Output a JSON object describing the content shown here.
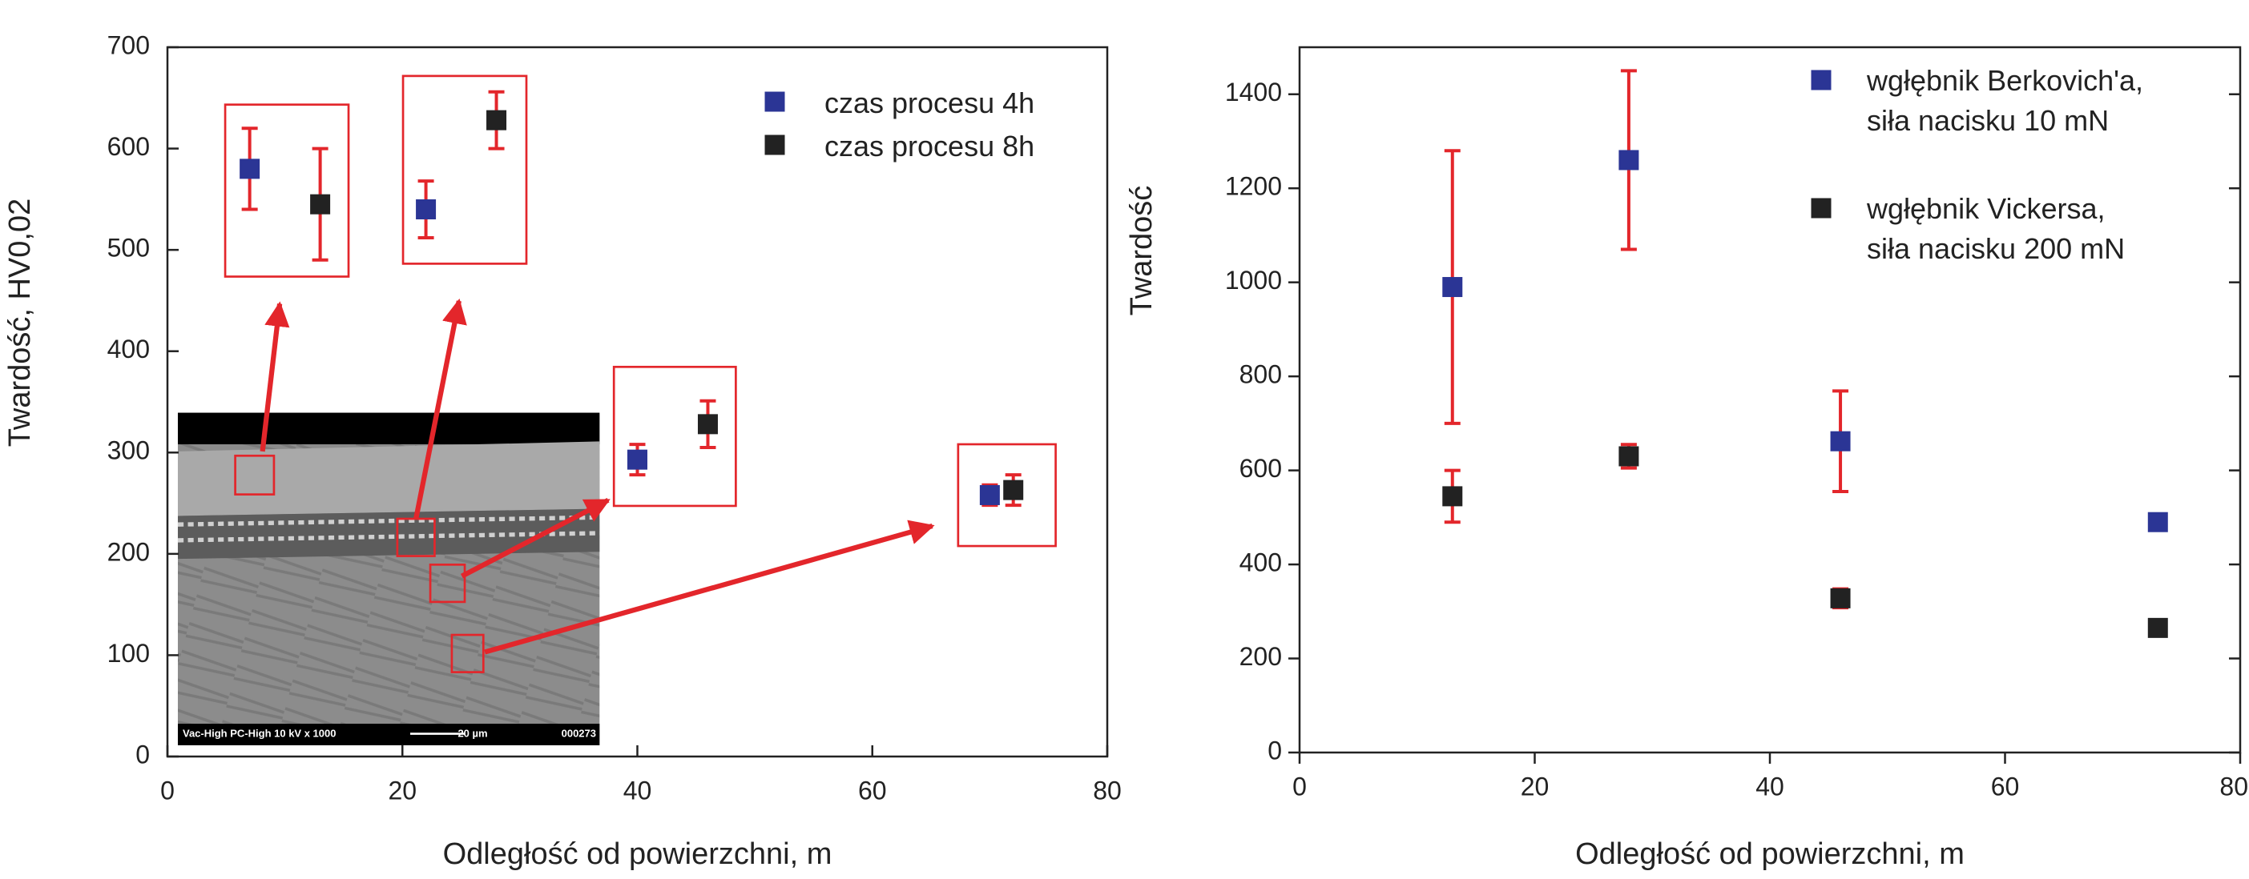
{
  "chart_data": [
    {
      "type": "scatter",
      "x_label": "Odległość od powierzchni,   m",
      "y_label": "Twardość,  HV0,02",
      "xlim": [
        0,
        80
      ],
      "ylim": [
        0,
        700
      ],
      "xticks": [
        0,
        20,
        40,
        60,
        80
      ],
      "yticks": [
        0,
        100,
        200,
        300,
        400,
        500,
        600,
        700
      ],
      "error_color": "#e3262b",
      "legend": "upper right",
      "series": [
        {
          "name": "czas procesu 4h",
          "color": "#2b3595",
          "x": [
            7,
            22,
            40,
            70
          ],
          "values": [
            580,
            540,
            293,
            258
          ],
          "errors": [
            40,
            28,
            15,
            10
          ]
        },
        {
          "name": "czas procesu 8h",
          "color": "#222222",
          "x": [
            13,
            28,
            46,
            72
          ],
          "values": [
            545,
            628,
            328,
            263
          ],
          "errors": [
            55,
            28,
            23,
            15
          ]
        }
      ],
      "inset_labels": [
        "Vac-High   PC-High  10 kV   x 1000",
        "20 µm",
        "000273"
      ]
    },
    {
      "type": "scatter",
      "x_label": "Odległość od powierzchni,   m",
      "y_label": "Twardość",
      "xlim": [
        0,
        80
      ],
      "ylim": [
        0,
        1500
      ],
      "xticks": [
        0,
        20,
        40,
        60,
        80
      ],
      "yticks": [
        0,
        200,
        400,
        600,
        800,
        1000,
        1200,
        1400
      ],
      "error_color": "#e3262b",
      "legend": "upper right",
      "series": [
        {
          "name": "wgłębnik Berkovich'a,\n siła nacisku 10 mN",
          "color": "#2b3595",
          "x": [
            13,
            28,
            46,
            73
          ],
          "values": [
            990,
            1260,
            662,
            490
          ],
          "errors": [
            290,
            190,
            107,
            15
          ]
        },
        {
          "name": "wgłębnik Vickersa,\n siła nacisku 200 mN",
          "color": "#222222",
          "x": [
            13,
            28,
            46,
            73
          ],
          "values": [
            545,
            630,
            328,
            265
          ],
          "errors": [
            55,
            25,
            20,
            12
          ]
        }
      ]
    }
  ]
}
